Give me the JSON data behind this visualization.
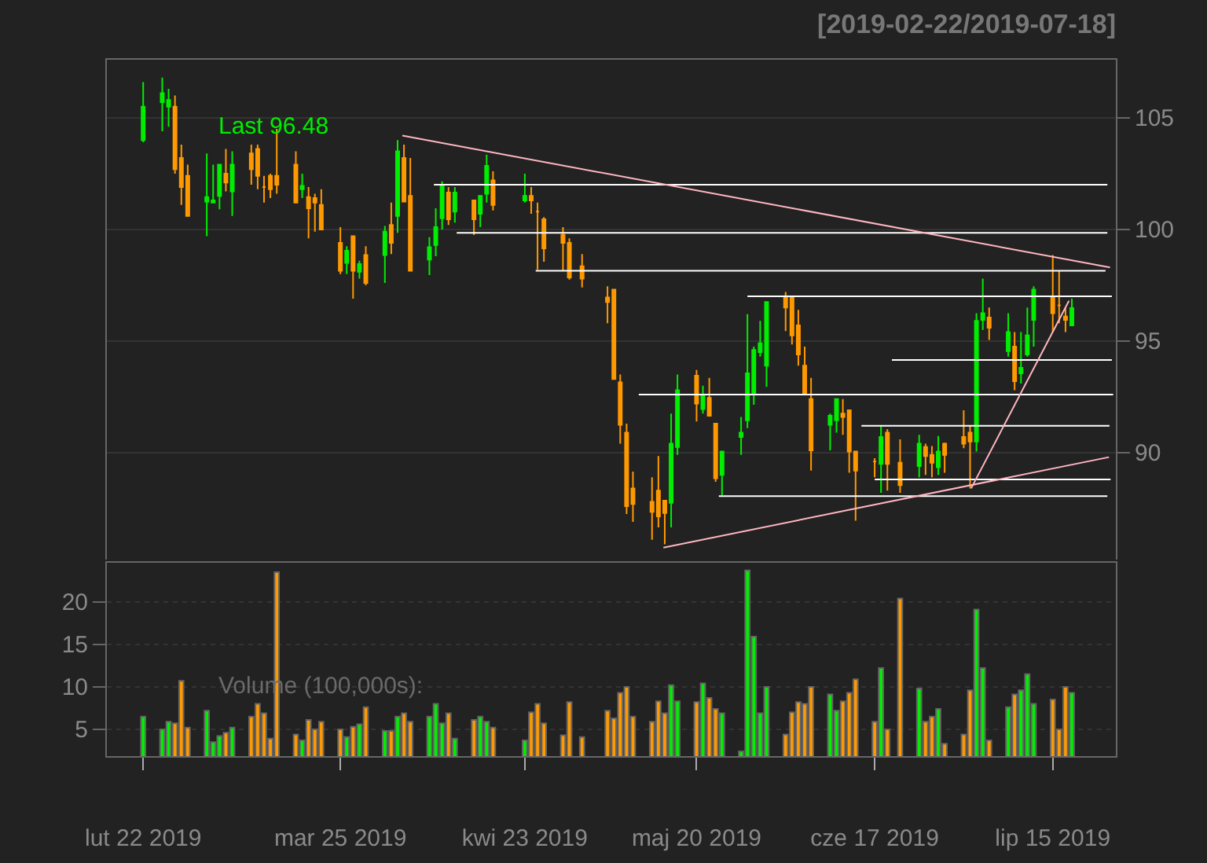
{
  "chart_data": [
    {
      "type": "candlestick",
      "title": "[2019-02-22/2019-07-18]",
      "x": [
        "2019-02-22",
        "2019-02-25",
        "2019-02-26",
        "2019-02-27",
        "2019-02-28",
        "2019-03-01",
        "2019-03-04",
        "2019-03-05",
        "2019-03-06",
        "2019-03-07",
        "2019-03-08",
        "2019-03-11",
        "2019-03-12",
        "2019-03-13",
        "2019-03-14",
        "2019-03-15",
        "2019-03-18",
        "2019-03-19",
        "2019-03-20",
        "2019-03-21",
        "2019-03-22",
        "2019-03-25",
        "2019-03-26",
        "2019-03-27",
        "2019-03-28",
        "2019-03-29",
        "2019-04-01",
        "2019-04-02",
        "2019-04-03",
        "2019-04-04",
        "2019-04-05",
        "2019-04-08",
        "2019-04-09",
        "2019-04-10",
        "2019-04-11",
        "2019-04-12",
        "2019-04-15",
        "2019-04-16",
        "2019-04-17",
        "2019-04-18",
        "2019-04-23",
        "2019-04-24",
        "2019-04-25",
        "2019-04-26",
        "2019-04-29",
        "2019-04-30",
        "2019-05-02",
        "2019-05-06",
        "2019-05-07",
        "2019-05-08",
        "2019-05-09",
        "2019-05-10",
        "2019-05-13",
        "2019-05-14",
        "2019-05-15",
        "2019-05-16",
        "2019-05-17",
        "2019-05-20",
        "2019-05-21",
        "2019-05-22",
        "2019-05-23",
        "2019-05-24",
        "2019-05-27",
        "2019-05-28",
        "2019-05-29",
        "2019-05-30",
        "2019-05-31",
        "2019-06-03",
        "2019-06-04",
        "2019-06-05",
        "2019-06-06",
        "2019-06-07",
        "2019-06-10",
        "2019-06-11",
        "2019-06-12",
        "2019-06-13",
        "2019-06-14",
        "2019-06-17",
        "2019-06-18",
        "2019-06-19",
        "2019-06-21",
        "2019-06-24",
        "2019-06-25",
        "2019-06-26",
        "2019-06-27",
        "2019-06-28",
        "2019-07-01",
        "2019-07-02",
        "2019-07-03",
        "2019-07-04",
        "2019-07-05",
        "2019-07-08",
        "2019-07-09",
        "2019-07-10",
        "2019-07-11",
        "2019-07-12",
        "2019-07-15",
        "2019-07-16",
        "2019-07-17",
        "2019-07-18"
      ],
      "ohlc": [
        [
          104.0,
          106.6,
          103.9,
          105.5
        ],
        [
          105.7,
          106.8,
          104.4,
          106.1
        ],
        [
          105.5,
          106.3,
          104.6,
          105.8
        ],
        [
          105.5,
          106.0,
          102.5,
          102.7
        ],
        [
          103.2,
          103.8,
          101.1,
          101.9
        ],
        [
          102.4,
          102.9,
          100.6,
          100.6
        ],
        [
          101.25,
          103.4,
          99.7,
          101.45
        ],
        [
          101.2,
          102.9,
          101.2,
          101.3
        ],
        [
          101.5,
          102.9,
          100.9,
          102.9
        ],
        [
          102.5,
          103.6,
          101.7,
          102.1
        ],
        [
          101.7,
          103.5,
          100.6,
          102.9
        ],
        [
          103.4,
          103.8,
          102.0,
          102.7
        ],
        [
          103.6,
          103.8,
          101.8,
          102.4
        ],
        [
          101.9,
          102.4,
          101.2,
          101.9
        ],
        [
          102.4,
          102.5,
          101.4,
          101.8
        ],
        [
          102.4,
          104.5,
          101.6,
          102.0
        ],
        [
          102.9,
          103.5,
          101.2,
          101.2
        ],
        [
          101.8,
          102.5,
          101.4,
          101.95
        ],
        [
          101.45,
          101.9,
          99.6,
          100.95
        ],
        [
          101.4,
          101.6,
          99.9,
          101.2
        ],
        [
          101.1,
          101.8,
          100.0,
          100.0
        ],
        [
          99.4,
          100.1,
          98.0,
          98.15
        ],
        [
          98.5,
          99.25,
          98.0,
          99.05
        ],
        [
          99.7,
          99.7,
          96.9,
          98.15
        ],
        [
          98.1,
          98.6,
          97.8,
          98.45
        ],
        [
          98.85,
          99.25,
          97.5,
          97.6
        ],
        [
          98.85,
          100.15,
          97.6,
          99.9
        ],
        [
          100.2,
          101.2,
          98.9,
          99.4
        ],
        [
          100.6,
          104.0,
          99.85,
          103.5
        ],
        [
          103.2,
          103.8,
          101.25,
          101.25
        ],
        [
          101.5,
          103.2,
          98.15,
          98.15
        ],
        [
          98.65,
          99.65,
          97.95,
          99.2
        ],
        [
          99.3,
          100.95,
          98.8,
          100.1
        ],
        [
          100.5,
          102.15,
          100.0,
          102.0
        ],
        [
          101.65,
          101.9,
          100.2,
          100.45
        ],
        [
          100.8,
          101.9,
          100.3,
          101.65
        ],
        [
          101.3,
          101.3,
          99.75,
          100.45
        ],
        [
          100.7,
          101.5,
          100.1,
          101.5
        ],
        [
          101.6,
          103.35,
          101.2,
          102.85
        ],
        [
          102.2,
          102.6,
          100.85,
          101.1
        ],
        [
          101.3,
          102.5,
          101.2,
          101.5
        ],
        [
          101.5,
          101.9,
          100.7,
          101.3
        ],
        [
          100.8,
          101.2,
          98.2,
          100.8
        ],
        [
          100.45,
          100.55,
          98.55,
          99.15
        ],
        [
          99.75,
          100.1,
          98.15,
          99.4
        ],
        [
          99.4,
          99.6,
          97.75,
          97.85
        ],
        [
          98.35,
          98.9,
          97.4,
          97.8
        ],
        [
          96.95,
          97.45,
          95.8,
          96.75
        ],
        [
          97.3,
          97.3,
          93.3,
          93.3
        ],
        [
          93.15,
          93.5,
          90.4,
          91.25
        ],
        [
          90.9,
          91.3,
          87.25,
          87.6
        ],
        [
          88.4,
          89.15,
          86.9,
          87.7
        ],
        [
          87.8,
          88.9,
          86.1,
          87.35
        ],
        [
          88.3,
          89.85,
          86.65,
          87.15
        ],
        [
          87.85,
          87.85,
          85.9,
          87.3
        ],
        [
          87.75,
          91.75,
          86.65,
          90.4
        ],
        [
          90.25,
          93.5,
          89.9,
          92.8
        ],
        [
          93.45,
          93.7,
          91.4,
          92.2
        ],
        [
          91.95,
          93.0,
          91.75,
          92.6
        ],
        [
          92.45,
          93.35,
          91.65,
          91.65
        ],
        [
          91.3,
          91.3,
          88.7,
          88.85
        ],
        [
          89.0,
          90.05,
          88.1,
          90.05
        ],
        [
          90.7,
          91.6,
          89.9,
          90.9
        ],
        [
          91.45,
          96.2,
          91.1,
          93.55
        ],
        [
          92.65,
          94.75,
          92.15,
          94.6
        ],
        [
          94.5,
          95.9,
          94.3,
          94.9
        ],
        [
          93.9,
          96.75,
          92.95,
          96.75
        ],
        [
          96.95,
          97.2,
          95.45,
          96.5
        ],
        [
          96.95,
          96.95,
          94.85,
          95.25
        ],
        [
          95.7,
          96.4,
          93.9,
          94.4
        ],
        [
          93.9,
          94.75,
          92.65,
          92.65
        ],
        [
          92.4,
          93.35,
          89.2,
          90.1
        ],
        [
          91.25,
          91.75,
          90.1,
          91.65
        ],
        [
          91.45,
          92.4,
          90.9,
          92.4
        ],
        [
          91.75,
          92.4,
          90.8,
          91.6
        ],
        [
          91.9,
          91.9,
          89.1,
          90.05
        ],
        [
          90.05,
          90.05,
          86.95,
          89.2
        ],
        [
          89.6,
          89.75,
          88.9,
          89.6
        ],
        [
          89.5,
          91.2,
          88.2,
          90.7
        ],
        [
          90.9,
          91.05,
          88.3,
          89.5
        ],
        [
          89.55,
          90.6,
          88.2,
          88.55
        ],
        [
          89.4,
          90.8,
          88.9,
          90.4
        ],
        [
          90.25,
          90.4,
          89.0,
          89.85
        ],
        [
          89.9,
          90.3,
          88.9,
          89.55
        ],
        [
          89.35,
          90.75,
          89.0,
          90.05
        ],
        [
          90.4,
          90.45,
          89.1,
          89.9
        ],
        [
          90.7,
          91.9,
          90.2,
          90.4
        ],
        [
          90.9,
          91.2,
          88.4,
          90.5
        ],
        [
          90.5,
          96.25,
          90.05,
          95.9
        ],
        [
          95.95,
          97.8,
          95.5,
          96.25
        ],
        [
          96.05,
          96.5,
          95.05,
          95.6
        ],
        [
          94.55,
          96.25,
          94.3,
          95.4
        ],
        [
          94.75,
          95.4,
          92.8,
          93.2
        ],
        [
          93.55,
          95.4,
          93.1,
          93.8
        ],
        [
          94.4,
          96.5,
          94.3,
          95.25
        ],
        [
          95.95,
          97.45,
          94.75,
          97.3
        ],
        [
          96.95,
          98.85,
          95.4,
          96.25
        ],
        [
          96.6,
          98.15,
          95.8,
          96.6
        ],
        [
          96.1,
          96.5,
          95.4,
          95.95
        ],
        [
          95.7,
          96.9,
          95.7,
          96.48
        ]
      ],
      "colors": [
        "#00ee00",
        "#00ee00",
        "#00ee00",
        "#ff9900",
        "#ff9900",
        "#ff9900",
        "#00ee00",
        "#00ee00",
        "#00ee00",
        "#ff9900",
        "#00ee00",
        "#ff9900",
        "#ff9900",
        "#ff9900",
        "#ff9900",
        "#ff9900",
        "#ff9900",
        "#00ee00",
        "#ff9900",
        "#ff9900",
        "#ff9900",
        "#ff9900",
        "#00ee00",
        "#ff9900",
        "#00ee00",
        "#ff9900",
        "#00ee00",
        "#ff9900",
        "#00ee00",
        "#ff9900",
        "#ff9900",
        "#00ee00",
        "#00ee00",
        "#00ee00",
        "#ff9900",
        "#00ee00",
        "#ff9900",
        "#00ee00",
        "#00ee00",
        "#ff9900",
        "#00ee00",
        "#ff9900",
        "#ff9900",
        "#ff9900",
        "#ff9900",
        "#ff9900",
        "#ff9900",
        "#ff9900",
        "#ff9900",
        "#ff9900",
        "#ff9900",
        "#ff9900",
        "#ff9900",
        "#ff9900",
        "#ff9900",
        "#00ee00",
        "#00ee00",
        "#ff9900",
        "#00ee00",
        "#ff9900",
        "#ff9900",
        "#00ee00",
        "#00ee00",
        "#00ee00",
        "#00ee00",
        "#00ee00",
        "#00ee00",
        "#ff9900",
        "#ff9900",
        "#ff9900",
        "#ff9900",
        "#ff9900",
        "#00ee00",
        "#00ee00",
        "#ff9900",
        "#ff9900",
        "#ff9900",
        "#ff9900",
        "#00ee00",
        "#ff9900",
        "#ff9900",
        "#00ee00",
        "#ff9900",
        "#ff9900",
        "#00ee00",
        "#ff9900",
        "#ff9900",
        "#ff9900",
        "#00ee00",
        "#00ee00",
        "#ff9900",
        "#00ee00",
        "#ff9900",
        "#00ee00",
        "#00ee00",
        "#00ee00",
        "#ff9900",
        "#ff9900",
        "#ff9900",
        "#00ee00"
      ],
      "series": [
        {
          "type": "line",
          "color": "#ffffff",
          "x": [
            "2019-04-08T17:00",
            "2019-07-23T14:00"
          ],
          "values": [
            102.0,
            102.0
          ]
        },
        {
          "type": "line",
          "color": "#ffffff",
          "x": [
            "2019-04-12T07:00",
            "2019-07-23T14:00"
          ],
          "values": [
            99.85,
            99.85
          ]
        },
        {
          "type": "line",
          "color": "#ffffff",
          "x": [
            "2019-04-24T17:00",
            "2019-07-23T07:00"
          ],
          "values": [
            98.15,
            98.15
          ]
        },
        {
          "type": "line",
          "color": "#ffffff",
          "x": [
            "2019-05-28",
            "2019-07-24T07:00"
          ],
          "values": [
            97.0,
            97.0
          ]
        },
        {
          "type": "line",
          "color": "#ffffff",
          "x": [
            "2019-06-19T17:00",
            "2019-07-24T07:00"
          ],
          "values": [
            94.15,
            94.15
          ]
        },
        {
          "type": "line",
          "color": "#ffffff",
          "x": [
            "2019-05-10T22:00",
            "2019-07-24T12:00"
          ],
          "values": [
            92.6,
            92.6
          ]
        },
        {
          "type": "line",
          "color": "#ffffff",
          "x": [
            "2019-06-14T22:00",
            "2019-07-23T22:00"
          ],
          "values": [
            91.2,
            91.2
          ]
        },
        {
          "type": "line",
          "color": "#ffffff",
          "x": [
            "2019-06-17",
            "2019-07-24T02:00"
          ],
          "values": [
            88.8,
            88.8
          ]
        },
        {
          "type": "line",
          "color": "#ffffff",
          "x": [
            "2019-05-23T12:00",
            "2019-07-23T14:00"
          ],
          "values": [
            88.05,
            88.05
          ]
        },
        {
          "type": "line",
          "color": "#ffb6c1",
          "x": [
            "2019-04-03T18:00",
            "2019-07-24"
          ],
          "values": [
            104.2,
            98.3
          ]
        },
        {
          "type": "line",
          "color": "#ffb6c1",
          "x": [
            "2019-05-14T19:00",
            "2019-07-23T20:00"
          ],
          "values": [
            85.75,
            89.8
          ]
        },
        {
          "type": "line",
          "color": "#ffb6c1",
          "x": [
            "2019-07-02T04:00",
            "2019-07-17T13:00"
          ],
          "values": [
            88.4,
            96.8
          ]
        }
      ],
      "annotations": [
        "Last 96.48"
      ],
      "xlim": [
        "2019-02-16T07:00",
        "2019-07-24T22:00"
      ],
      "ylim": [
        85.14,
        107.6
      ],
      "yticks": [
        90,
        95,
        100,
        105
      ],
      "grid": "y",
      "tick_labels": "y"
    },
    {
      "type": "bar",
      "x": [
        "2019-02-22",
        "2019-02-25",
        "2019-02-26",
        "2019-02-27",
        "2019-02-28",
        "2019-03-01",
        "2019-03-04",
        "2019-03-05",
        "2019-03-06",
        "2019-03-07",
        "2019-03-08",
        "2019-03-11",
        "2019-03-12",
        "2019-03-13",
        "2019-03-14",
        "2019-03-15",
        "2019-03-18",
        "2019-03-19",
        "2019-03-20",
        "2019-03-21",
        "2019-03-22",
        "2019-03-25",
        "2019-03-26",
        "2019-03-27",
        "2019-03-28",
        "2019-03-29",
        "2019-04-01",
        "2019-04-02",
        "2019-04-03",
        "2019-04-04",
        "2019-04-05",
        "2019-04-08",
        "2019-04-09",
        "2019-04-10",
        "2019-04-11",
        "2019-04-12",
        "2019-04-15",
        "2019-04-16",
        "2019-04-17",
        "2019-04-18",
        "2019-04-23",
        "2019-04-24",
        "2019-04-25",
        "2019-04-26",
        "2019-04-29",
        "2019-04-30",
        "2019-05-02",
        "2019-05-06",
        "2019-05-07",
        "2019-05-08",
        "2019-05-09",
        "2019-05-10",
        "2019-05-13",
        "2019-05-14",
        "2019-05-15",
        "2019-05-16",
        "2019-05-17",
        "2019-05-20",
        "2019-05-21",
        "2019-05-22",
        "2019-05-23",
        "2019-05-24",
        "2019-05-27",
        "2019-05-28",
        "2019-05-29",
        "2019-05-30",
        "2019-05-31",
        "2019-06-03",
        "2019-06-04",
        "2019-06-05",
        "2019-06-06",
        "2019-06-07",
        "2019-06-10",
        "2019-06-11",
        "2019-06-12",
        "2019-06-13",
        "2019-06-14",
        "2019-06-17",
        "2019-06-18",
        "2019-06-19",
        "2019-06-21",
        "2019-06-24",
        "2019-06-25",
        "2019-06-26",
        "2019-06-27",
        "2019-06-28",
        "2019-07-01",
        "2019-07-02",
        "2019-07-03",
        "2019-07-04",
        "2019-07-05",
        "2019-07-08",
        "2019-07-09",
        "2019-07-10",
        "2019-07-11",
        "2019-07-12",
        "2019-07-15",
        "2019-07-16",
        "2019-07-17",
        "2019-07-18"
      ],
      "values": [
        6.5,
        5.0,
        5.9,
        5.7,
        10.7,
        5.2,
        7.2,
        3.5,
        4.2,
        4.6,
        5.2,
        6.5,
        8.0,
        6.9,
        3.9,
        23.5,
        4.4,
        3.7,
        6.1,
        5.0,
        5.9,
        5.0,
        4.1,
        5.3,
        5.6,
        7.6,
        4.8,
        4.8,
        6.5,
        6.9,
        5.9,
        6.5,
        8.0,
        5.7,
        6.9,
        3.9,
        6.1,
        6.5,
        5.9,
        5.2,
        3.7,
        7.0,
        8.0,
        5.7,
        4.3,
        8.2,
        4.1,
        7.2,
        6.3,
        9.3,
        10.0,
        6.5,
        5.9,
        8.3,
        6.9,
        10.2,
        8.3,
        8.2,
        10.4,
        8.7,
        7.4,
        6.9,
        2.4,
        23.7,
        15.9,
        6.9,
        10.0,
        4.4,
        7.0,
        8.2,
        8.0,
        10.0,
        9.1,
        7.2,
        8.3,
        9.3,
        10.9,
        5.9,
        12.2,
        5.0,
        20.4,
        9.8,
        5.9,
        6.5,
        7.4,
        3.3,
        4.4,
        9.6,
        19.1,
        12.2,
        3.7,
        7.6,
        9.1,
        9.6,
        11.5,
        8.0,
        8.5,
        5.0,
        10.0,
        9.3
      ],
      "colors": [
        "#00ee00",
        "#00ee00",
        "#00ee00",
        "#ff9900",
        "#ff9900",
        "#ff9900",
        "#00ee00",
        "#00ee00",
        "#00ee00",
        "#ff9900",
        "#00ee00",
        "#ff9900",
        "#ff9900",
        "#ff9900",
        "#ff9900",
        "#ff9900",
        "#ff9900",
        "#00ee00",
        "#ff9900",
        "#ff9900",
        "#ff9900",
        "#ff9900",
        "#00ee00",
        "#ff9900",
        "#00ee00",
        "#ff9900",
        "#00ee00",
        "#ff9900",
        "#00ee00",
        "#ff9900",
        "#ff9900",
        "#00ee00",
        "#00ee00",
        "#00ee00",
        "#ff9900",
        "#00ee00",
        "#ff9900",
        "#00ee00",
        "#00ee00",
        "#ff9900",
        "#00ee00",
        "#ff9900",
        "#ff9900",
        "#ff9900",
        "#ff9900",
        "#ff9900",
        "#ff9900",
        "#ff9900",
        "#ff9900",
        "#ff9900",
        "#ff9900",
        "#ff9900",
        "#ff9900",
        "#ff9900",
        "#ff9900",
        "#00ee00",
        "#00ee00",
        "#ff9900",
        "#00ee00",
        "#ff9900",
        "#ff9900",
        "#00ee00",
        "#00ee00",
        "#00ee00",
        "#00ee00",
        "#00ee00",
        "#00ee00",
        "#ff9900",
        "#ff9900",
        "#ff9900",
        "#ff9900",
        "#ff9900",
        "#00ee00",
        "#00ee00",
        "#ff9900",
        "#ff9900",
        "#ff9900",
        "#ff9900",
        "#00ee00",
        "#ff9900",
        "#ff9900",
        "#00ee00",
        "#ff9900",
        "#ff9900",
        "#00ee00",
        "#ff9900",
        "#ff9900",
        "#ff9900",
        "#00ee00",
        "#00ee00",
        "#ff9900",
        "#00ee00",
        "#ff9900",
        "#00ee00",
        "#00ee00",
        "#00ee00",
        "#ff9900",
        "#ff9900",
        "#ff9900",
        "#00ee00"
      ],
      "annotations": [
        "Volume (100,000s):"
      ],
      "xlim": [
        "2019-02-16T07:00",
        "2019-07-24T22:00"
      ],
      "xticks": [
        {
          "value": "2019-02-22",
          "label": "lut 22 2019"
        },
        {
          "value": "2019-03-25",
          "label": "mar 25 2019"
        },
        {
          "value": "2019-04-23",
          "label": "kwi 23 2019"
        },
        {
          "value": "2019-05-20",
          "label": "maj 20 2019"
        },
        {
          "value": "2019-06-17",
          "label": "cze 17 2019"
        },
        {
          "value": "2019-07-15",
          "label": "lip 15 2019"
        }
      ],
      "ylim": [
        1.85,
        24.6
      ],
      "yticks": [
        5,
        10,
        15,
        20
      ],
      "grid": "y"
    }
  ]
}
